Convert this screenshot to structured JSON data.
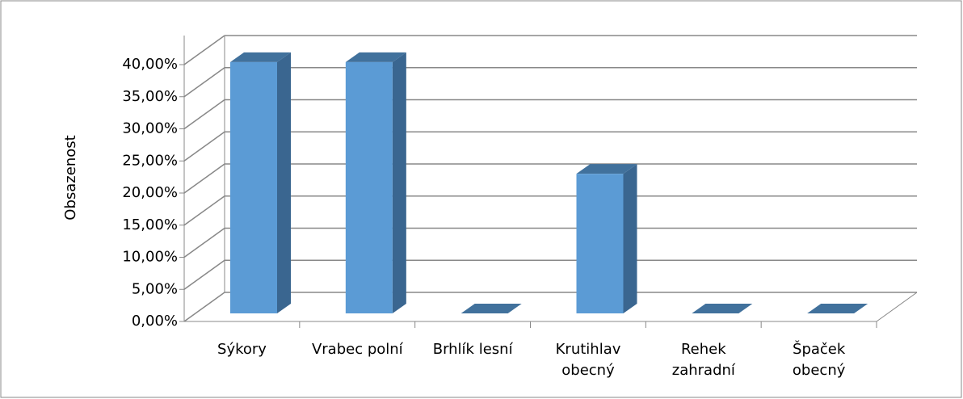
{
  "chart_data": {
    "type": "bar3d",
    "y_axis_label": "Obsazenost",
    "categories": [
      "Sýkory",
      "Vrabec polní",
      "Brhlík lesní",
      "Krutihlav\nobecný",
      "Rehek\nzahradní",
      "Špaček\nobecný"
    ],
    "values": [
      39.13,
      39.13,
      0,
      21.74,
      0,
      0
    ],
    "color": "#5b9bd5",
    "ylim": [
      0,
      40
    ],
    "yticks": [
      {
        "value": 0,
        "label": "0,00%"
      },
      {
        "value": 5,
        "label": "5,00%"
      },
      {
        "value": 10,
        "label": "10,00%"
      },
      {
        "value": 15,
        "label": "15,00%"
      },
      {
        "value": 20,
        "label": "20,00%"
      },
      {
        "value": 25,
        "label": "25,00%"
      },
      {
        "value": 30,
        "label": "30,00%"
      },
      {
        "value": 35,
        "label": "35,00%"
      },
      {
        "value": 40,
        "label": "40,00%"
      }
    ],
    "grid": true
  }
}
